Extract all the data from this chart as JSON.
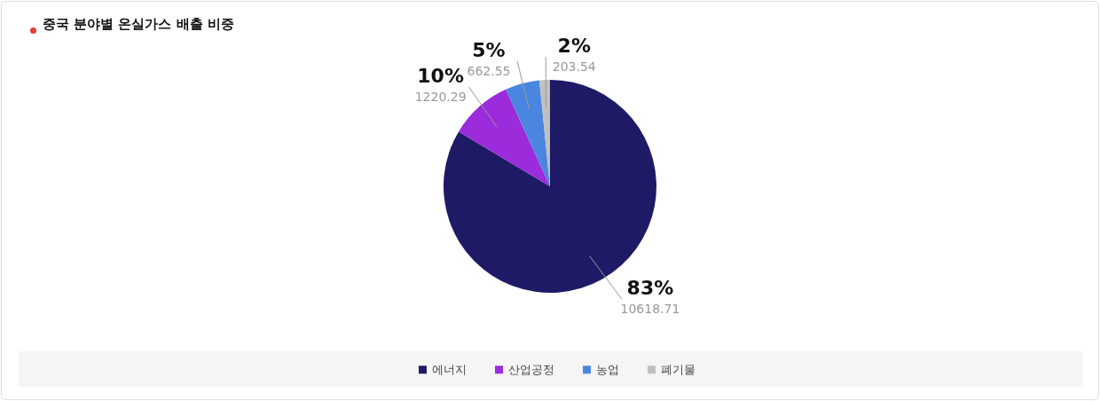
{
  "chart_data": {
    "type": "pie",
    "title": "중국 분야별 온실가스 배출 비중",
    "categories": [
      "에너지",
      "산업공정",
      "농업",
      "폐기물"
    ],
    "values": [
      10618.71,
      1220.29,
      662.55,
      203.54
    ],
    "colors": [
      "#1e1a66",
      "#9b2bdb",
      "#4a86e0",
      "#c0c0c0"
    ],
    "annotations": [
      "83%",
      "10%",
      "5%",
      "2%"
    ],
    "data_labels": true,
    "legend": "bottom"
  }
}
